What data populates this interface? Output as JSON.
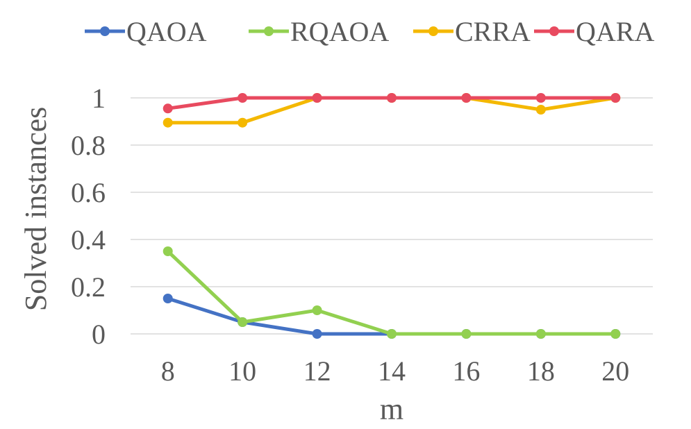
{
  "chart_data": {
    "type": "line",
    "title": "",
    "xlabel": "m",
    "ylabel": "Solved instances",
    "categories": [
      "8",
      "10",
      "12",
      "14",
      "16",
      "18",
      "20"
    ],
    "ylim": [
      0,
      1
    ],
    "yticks": [
      "0",
      "0.2",
      "0.4",
      "0.6",
      "0.8",
      "1"
    ],
    "ytick_values": [
      0,
      0.2,
      0.4,
      0.6,
      0.8,
      1
    ],
    "grid": true,
    "legend_position": "top",
    "series": [
      {
        "name": "QAOA",
        "color": "#4472C4",
        "values": [
          0.15,
          0.05,
          0,
          0,
          0,
          0,
          0
        ]
      },
      {
        "name": "RQAOA",
        "color": "#92D050",
        "values": [
          0.35,
          0.05,
          0.1,
          0,
          0,
          0,
          0
        ]
      },
      {
        "name": "CRRA",
        "color": "#F4B800",
        "values": [
          0.895,
          0.895,
          1,
          1,
          1,
          0.95,
          1
        ]
      },
      {
        "name": "QARA",
        "color": "#E84A5F",
        "values": [
          0.955,
          1,
          1,
          1,
          1,
          1,
          1
        ]
      }
    ]
  }
}
